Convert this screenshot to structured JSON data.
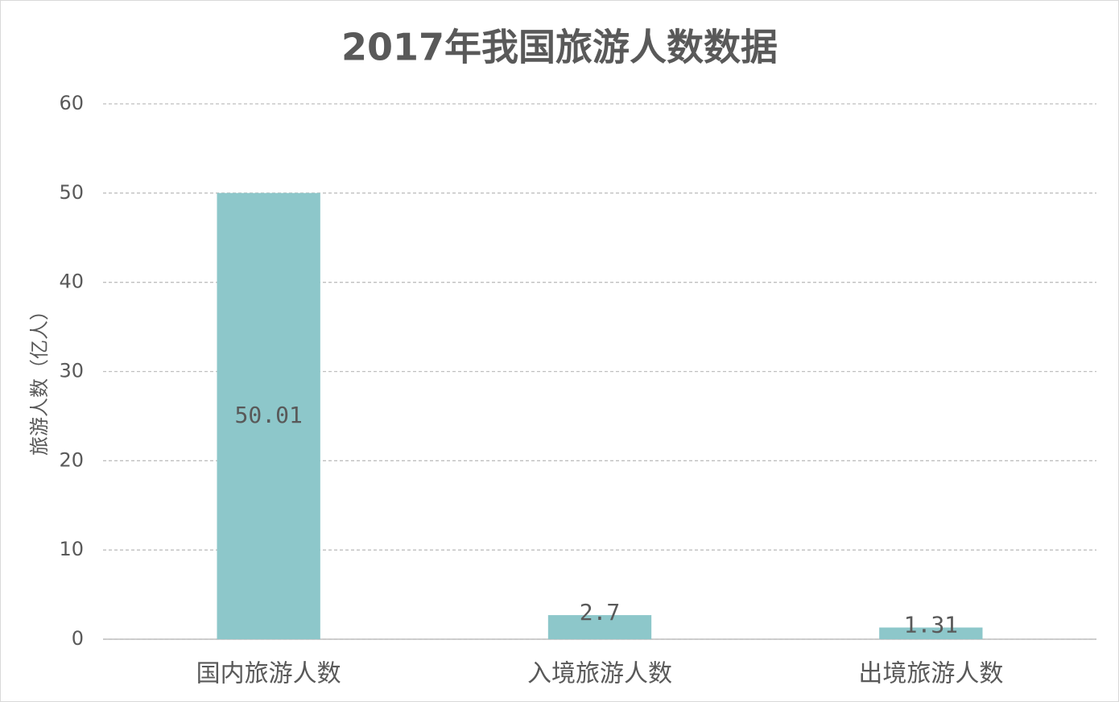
{
  "chart_data": {
    "type": "bar",
    "title": "2017年我国旅游人数数据",
    "ylabel": "旅游人数（亿人）",
    "categories": [
      "国内旅游人数",
      "入境旅游人数",
      "出境旅游人数"
    ],
    "values": [
      50.01,
      2.7,
      1.31
    ],
    "color": "#8dc7ca",
    "ylim": [
      0,
      60
    ],
    "yticks": [
      0,
      10,
      20,
      30,
      40,
      50,
      60
    ],
    "grid": true
  }
}
